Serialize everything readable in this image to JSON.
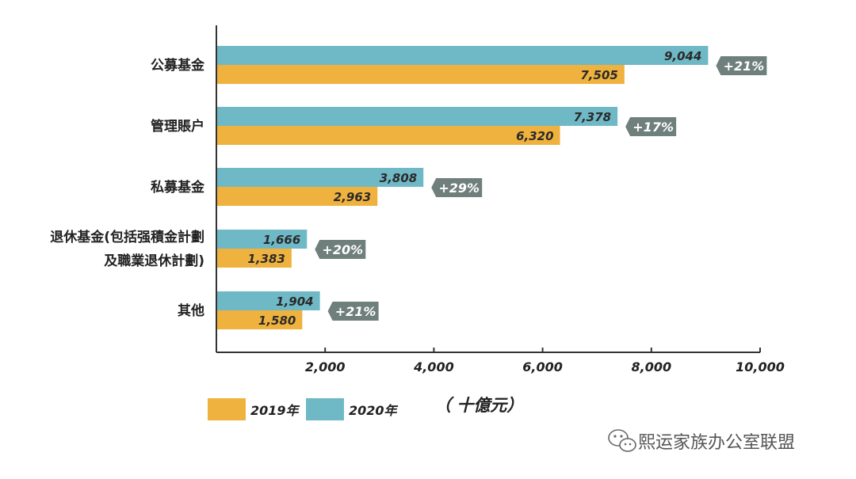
{
  "chart_data": {
    "type": "bar",
    "orientation": "horizontal",
    "categories": [
      [
        "公募基金"
      ],
      [
        "管理賬户"
      ],
      [
        "私募基金"
      ],
      [
        "退休基金(包括强積金計劃",
        "及職業退休計劃)"
      ],
      [
        "其他"
      ]
    ],
    "series": [
      {
        "name": "2020年",
        "color": "#6fb8c6",
        "values": [
          9044,
          7378,
          3808,
          1666,
          1904
        ],
        "labels": [
          "9,044",
          "7,378",
          "3,808",
          "1,666",
          "1,904"
        ]
      },
      {
        "name": "2019年",
        "color": "#f0b23e",
        "values": [
          7505,
          6320,
          2963,
          1383,
          1580
        ],
        "labels": [
          "7,505",
          "6,320",
          "2,963",
          "1,383",
          "1,580"
        ]
      }
    ],
    "growth_labels": [
      "+21%",
      "+17%",
      "+29%",
      "+20%",
      "+21%"
    ],
    "growth_color": "#6f7f7b",
    "xlim": [
      0,
      10000
    ],
    "xticks": [
      2000,
      4000,
      6000,
      8000,
      10000
    ],
    "xtick_labels": [
      "2,000",
      "4,000",
      "6,000",
      "8,000",
      "10,000"
    ],
    "xlabel": "（ 十億元）",
    "legend": [
      {
        "name": "2019年",
        "color": "#f0b23e"
      },
      {
        "name": "2020年",
        "color": "#6fb8c6"
      }
    ],
    "legend_position": "bottom-left",
    "grid": false
  },
  "watermark": {
    "text": "熙运家族办公室联盟",
    "icon": "wechat-icon"
  }
}
